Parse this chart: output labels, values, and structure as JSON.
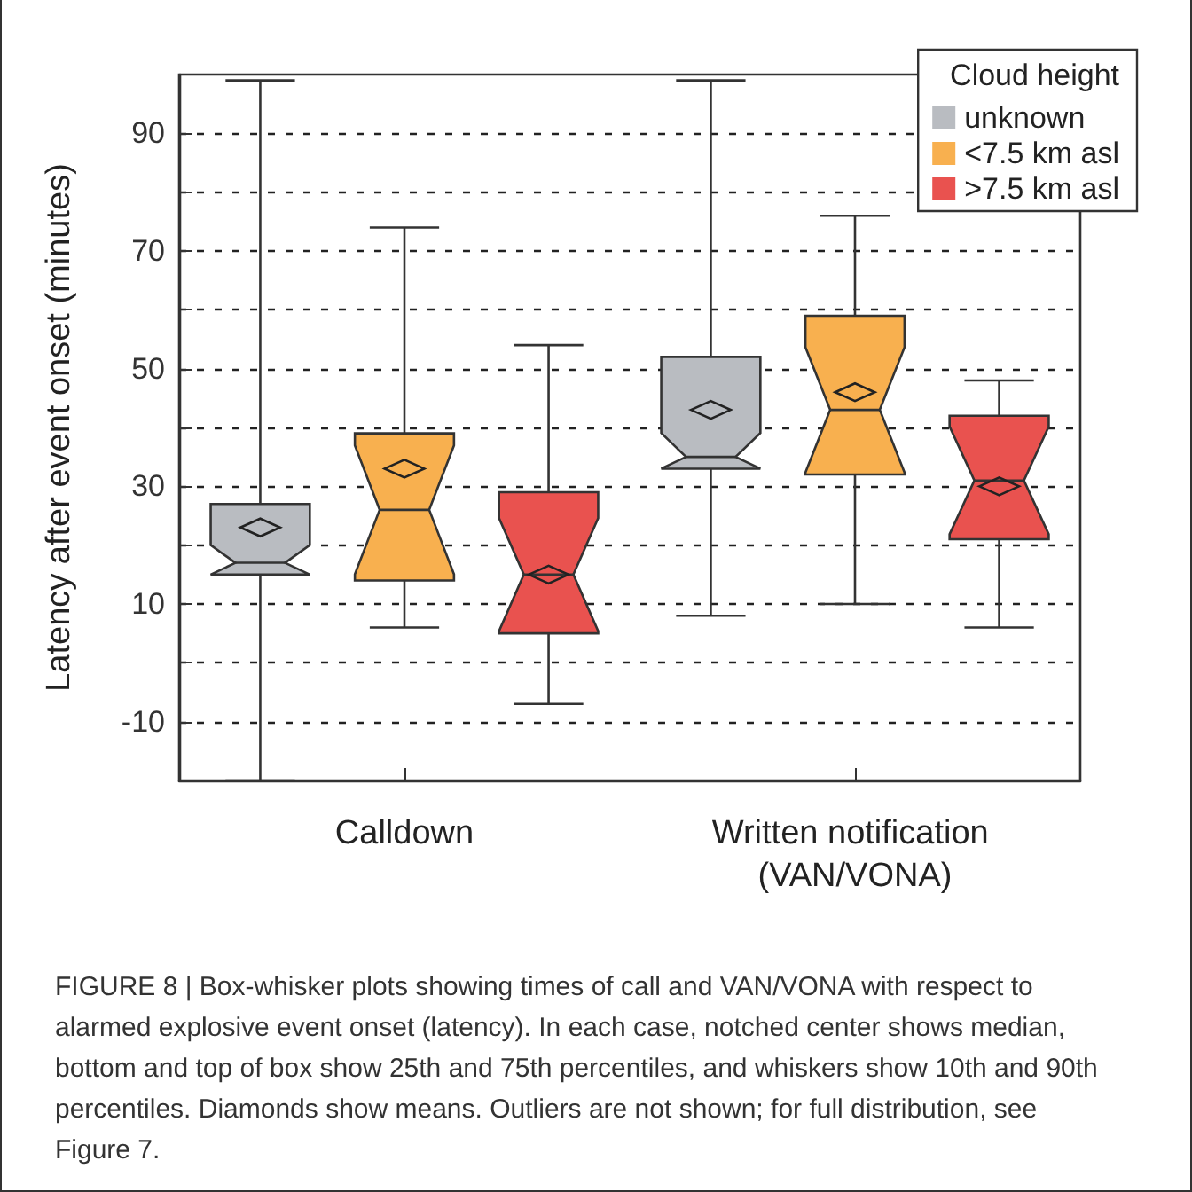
{
  "chart_data": {
    "type": "box",
    "categories": [
      "Calldown",
      "Written notification (VAN/VONA)"
    ],
    "ylabel": "Latency after event onset (minutes)",
    "legend_title": "Cloud height",
    "legend": "top right",
    "grid": "y",
    "ylim": [
      -20,
      100
    ],
    "yticks": [
      -10,
      {
        "value": 0,
        "label": null
      },
      10,
      {
        "value": 20,
        "label": null
      },
      30,
      {
        "value": 40,
        "label": null
      },
      50,
      {
        "value": 60,
        "label": null
      },
      70,
      {
        "value": 80,
        "label": null
      },
      90
    ],
    "series": [
      {
        "name": "unknown",
        "color": "#b9bcc1",
        "boxes": [
          {
            "low": -20,
            "q1": 15,
            "median": 17,
            "q3": 27,
            "high": 99,
            "mean": 23
          },
          {
            "low": 8,
            "q1": 33,
            "median": 35,
            "q3": 52,
            "high": 99,
            "mean": 43
          }
        ]
      },
      {
        "name": "<7.5 km asl",
        "color": "#f8b04f",
        "boxes": [
          {
            "low": 6,
            "q1": 14,
            "median": 26,
            "q3": 39,
            "high": 74,
            "mean": 33
          },
          {
            "low": 10,
            "q1": 32,
            "median": 43,
            "q3": 59,
            "high": 76,
            "mean": 46
          }
        ]
      },
      {
        "name": ">7.5 km asl",
        "color": "#e9524f",
        "boxes": [
          {
            "low": -7,
            "q1": 5,
            "median": 15,
            "q3": 29,
            "high": 54,
            "mean": 15
          },
          {
            "low": 6,
            "q1": 21,
            "median": 31,
            "q3": 42,
            "high": 48,
            "mean": 30
          }
        ]
      }
    ],
    "annotations": [
      "FIGURE 8 | Box-whisker plots showing times of call and VAN/VONA with respect to alarmed explosive event onset (latency). In each case, notched center shows median, bottom and top of box show 25th and 75th percentiles, and whiskers show 10th and 90th percentiles. Diamonds show means. Outliers are not shown; for full distribution, see Figure 7."
    ]
  }
}
